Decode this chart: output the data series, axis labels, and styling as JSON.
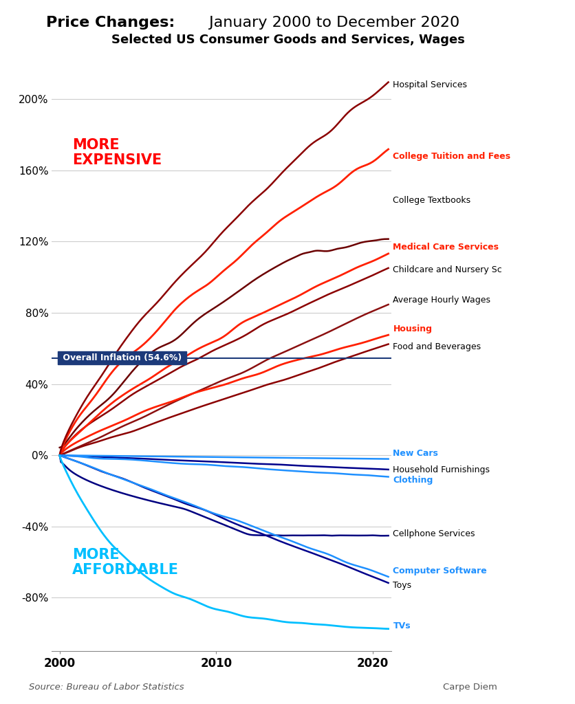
{
  "title_bold": "Price Changes:",
  "title_normal": " January 2000 to December 2020",
  "title2": "Selected US Consumer Goods and Services, Wages",
  "source": "Source: Bureau of Labor Statistics",
  "carpe_diem": "Carpe Diem",
  "overall_inflation_label": "Overall Inflation (54.6%)",
  "overall_inflation_value": 54.6,
  "more_expensive_label": "MORE\nEXPENSIVE",
  "more_affordable_label": "MORE\nAFFORDABLE",
  "series": {
    "Hospital Services": {
      "color": "#8B0000",
      "lw": 1.8,
      "label_color": "#000000"
    },
    "College Tuition and Fees": {
      "color": "#FF2000",
      "lw": 2.0,
      "label_color": "#FF2000"
    },
    "College Textbooks": {
      "color": "#6B0000",
      "lw": 1.8,
      "label_color": "#000000"
    },
    "Medical Care Services": {
      "color": "#FF2000",
      "lw": 2.0,
      "label_color": "#FF2000"
    },
    "Childcare and Nursery Sc": {
      "color": "#8B0000",
      "lw": 1.8,
      "label_color": "#000000"
    },
    "Average Hourly Wages": {
      "color": "#8B1010",
      "lw": 1.8,
      "label_color": "#000000"
    },
    "Housing": {
      "color": "#FF2000",
      "lw": 2.0,
      "label_color": "#FF2000"
    },
    "Food and Beverages": {
      "color": "#8B0000",
      "lw": 1.8,
      "label_color": "#000000"
    },
    "New Cars": {
      "color": "#1E90FF",
      "lw": 1.8,
      "label_color": "#1E90FF"
    },
    "Household Furnishings": {
      "color": "#00008B",
      "lw": 1.8,
      "label_color": "#000000"
    },
    "Clothing": {
      "color": "#1E90FF",
      "lw": 1.8,
      "label_color": "#1E90FF"
    },
    "Cellphone Services": {
      "color": "#000080",
      "lw": 1.8,
      "label_color": "#000000"
    },
    "Computer Software": {
      "color": "#1E90FF",
      "lw": 1.8,
      "label_color": "#1E90FF"
    },
    "Toys": {
      "color": "#00008B",
      "lw": 1.8,
      "label_color": "#000000"
    },
    "TVs": {
      "color": "#00BFFF",
      "lw": 2.0,
      "label_color": "#1E90FF"
    }
  },
  "ylim": [
    -110,
    230
  ],
  "yticks": [
    -80,
    -40,
    0,
    40,
    80,
    120,
    160,
    200
  ],
  "xlim_left": 1999.5,
  "xlim_right": 2021.2,
  "xticks": [
    2000,
    2010,
    2020
  ],
  "background_color": "#FFFFFF",
  "grid_color": "#CCCCCC"
}
